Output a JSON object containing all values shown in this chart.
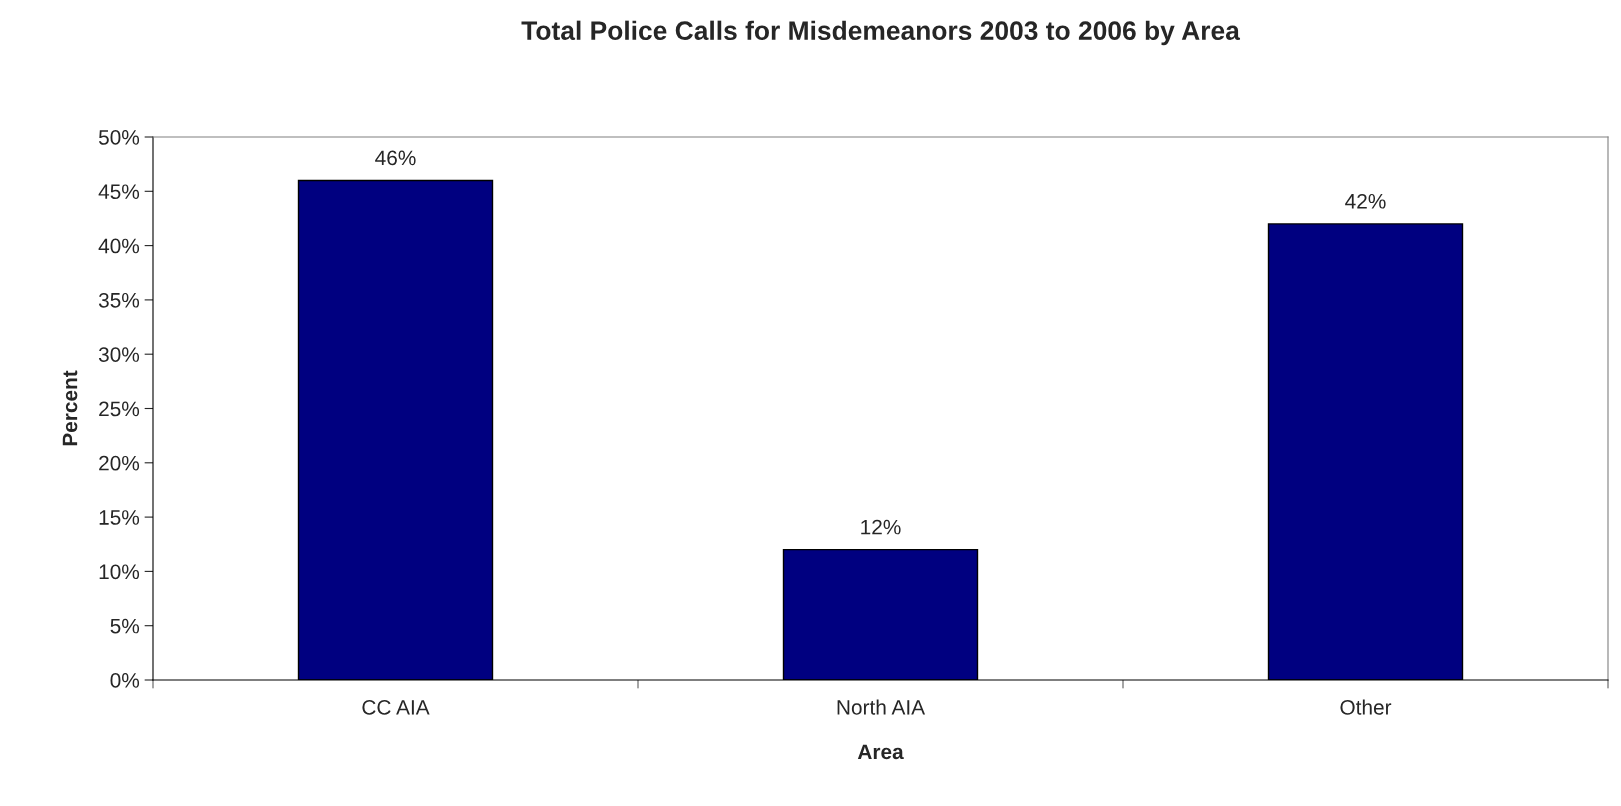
{
  "chart_data": {
    "type": "bar",
    "title": "Total Police Calls for Misdemeanors 2003 to 2006 by Area",
    "xlabel": "Area",
    "ylabel": "Percent",
    "categories": [
      "CC AIA",
      "North AIA",
      "Other"
    ],
    "values": [
      46,
      12,
      42
    ],
    "value_labels": [
      "46%",
      "12%",
      "42%"
    ],
    "color": "#000080",
    "ylim": [
      0,
      50
    ],
    "yticks": [
      {
        "value": 0,
        "label": "0%"
      },
      {
        "value": 5,
        "label": "5%"
      },
      {
        "value": 10,
        "label": "10%"
      },
      {
        "value": 15,
        "label": "15%"
      },
      {
        "value": 20,
        "label": "20%"
      },
      {
        "value": 25,
        "label": "25%"
      },
      {
        "value": 30,
        "label": "30%"
      },
      {
        "value": 35,
        "label": "35%"
      },
      {
        "value": 40,
        "label": "40%"
      },
      {
        "value": 45,
        "label": "45%"
      },
      {
        "value": 50,
        "label": "50%"
      }
    ],
    "grid": false,
    "legend": false
  }
}
